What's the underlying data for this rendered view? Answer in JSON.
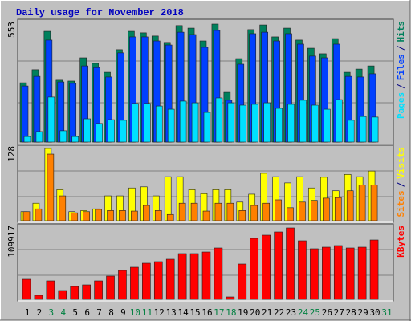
{
  "chart_data": [
    {
      "type": "bar",
      "title": "Daily usage for November 2018",
      "ylim": [
        0,
        553
      ],
      "yticks": [
        553
      ],
      "legend_separator": "/",
      "series": [
        {
          "name": "Hits",
          "color": "#00805c",
          "values": [
            278,
            339,
            519,
            290,
            286,
            395,
            369,
            327,
            433,
            519,
            512,
            497,
            467,
            546,
            534,
            474,
            553,
            233,
            391,
            527,
            549,
            493,
            534,
            478,
            440,
            414,
            485,
            327,
            342,
            357,
            0
          ]
        },
        {
          "name": "Files",
          "color": "#0040ff",
          "values": [
            263,
            308,
            478,
            282,
            275,
            357,
            349,
            305,
            418,
            493,
            493,
            474,
            455,
            515,
            504,
            444,
            523,
            196,
            365,
            508,
            515,
            474,
            508,
            459,
            403,
            395,
            459,
            308,
            305,
            320,
            0
          ]
        },
        {
          "name": "Pages",
          "color": "#00e0ff",
          "values": [
            26,
            49,
            211,
            53,
            26,
            109,
            87,
            105,
            102,
            181,
            181,
            169,
            154,
            192,
            184,
            139,
            207,
            184,
            173,
            177,
            184,
            158,
            177,
            196,
            173,
            154,
            199,
            102,
            120,
            117,
            0
          ]
        }
      ]
    },
    {
      "type": "bar",
      "ylim": [
        0,
        128
      ],
      "yticks": [
        128
      ],
      "legend_separator": "/",
      "series": [
        {
          "name": "Visits",
          "color": "#ffff00",
          "values": [
            16,
            31,
            128,
            55,
            16,
            18,
            21,
            44,
            44,
            58,
            60,
            44,
            78,
            78,
            55,
            48,
            55,
            55,
            33,
            47,
            84,
            78,
            67,
            78,
            58,
            77,
            53,
            82,
            78,
            88,
            0
          ]
        },
        {
          "name": "Sites",
          "color": "#ff8000",
          "values": [
            16,
            21,
            118,
            44,
            14,
            16,
            20,
            18,
            18,
            17,
            27,
            18,
            11,
            31,
            31,
            17,
            31,
            31,
            18,
            27,
            31,
            37,
            23,
            33,
            36,
            40,
            41,
            53,
            63,
            63,
            0
          ]
        }
      ]
    },
    {
      "type": "bar",
      "ylim": [
        0,
        109917
      ],
      "yticks": [
        109917
      ],
      "categories": [
        "1",
        "2",
        "3",
        "4",
        "5",
        "6",
        "7",
        "8",
        "9",
        "10",
        "11",
        "12",
        "13",
        "14",
        "15",
        "16",
        "17",
        "18",
        "19",
        "20",
        "21",
        "22",
        "23",
        "24",
        "25",
        "26",
        "27",
        "28",
        "29",
        "30",
        "31"
      ],
      "category_colors": [
        "#000000",
        "#000000",
        "#008040",
        "#008040",
        "#000000",
        "#000000",
        "#000000",
        "#000000",
        "#000000",
        "#008040",
        "#008040",
        "#000000",
        "#000000",
        "#000000",
        "#000000",
        "#000000",
        "#008040",
        "#008040",
        "#000000",
        "#000000",
        "#000000",
        "#000000",
        "#000000",
        "#008040",
        "#008040",
        "#000000",
        "#000000",
        "#000000",
        "#000000",
        "#000000",
        "#008040"
      ],
      "series": [
        {
          "name": "KBytes",
          "color": "#ff0000",
          "values": [
            30880,
            6175,
            28400,
            13585,
            19760,
            22230,
            28400,
            35815,
            44460,
            49400,
            55575,
            58045,
            61750,
            70395,
            70395,
            72865,
            79040,
            3705,
            54340,
            93860,
            98800,
            103740,
            109917,
            90155,
            77805,
            80275,
            82745,
            79040,
            80275,
            91390,
            0
          ]
        }
      ]
    }
  ]
}
